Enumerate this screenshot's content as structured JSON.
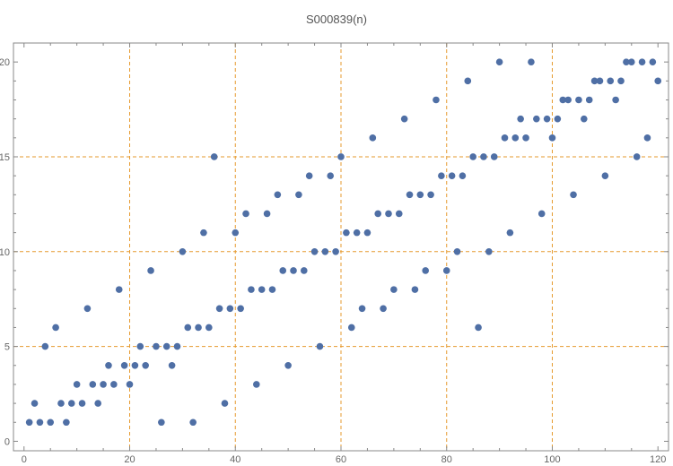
{
  "chart_data": {
    "type": "scatter",
    "title": "S000839(n)",
    "xlabel": "",
    "ylabel": "",
    "xlim": [
      -2,
      122
    ],
    "ylim": [
      -0.5,
      21
    ],
    "grid": true,
    "legend": "none",
    "x_ticks": [
      0,
      20,
      40,
      60,
      80,
      100,
      120
    ],
    "y_ticks": [
      0,
      5,
      10,
      15,
      20
    ],
    "x_gridlines": [
      20,
      40,
      60,
      80,
      100
    ],
    "y_gridlines": [
      5,
      10,
      15
    ],
    "colors": {
      "points": "#4f6fa5",
      "grid": "#e69a2e",
      "frame": "#888888",
      "text": "#555555"
    },
    "series": [
      {
        "x": [
          1,
          2,
          3,
          4,
          5,
          6,
          7,
          8,
          9,
          10,
          11,
          12,
          13,
          14,
          15,
          16,
          17,
          18,
          19,
          20,
          21,
          22,
          23,
          24,
          25,
          26,
          27,
          28,
          29,
          30,
          31,
          32,
          33,
          34,
          35,
          36,
          37,
          38,
          39,
          40,
          41,
          42,
          43,
          44,
          45,
          46,
          47,
          48,
          49,
          50,
          51,
          52,
          53,
          54,
          55,
          56,
          57,
          58,
          59,
          60,
          61,
          62,
          63,
          64,
          65,
          66,
          67,
          68,
          69,
          70,
          71,
          72,
          73,
          74,
          75,
          76,
          77,
          78,
          79,
          80,
          81,
          82,
          83,
          84,
          85,
          86,
          87,
          88,
          89,
          90,
          91,
          92,
          93,
          94,
          95,
          96,
          97,
          98,
          99,
          100,
          101,
          102,
          103,
          104,
          105,
          106,
          107,
          108,
          109,
          110,
          111,
          112,
          113,
          114,
          115,
          116,
          117,
          118,
          119,
          120
        ],
        "y": [
          1,
          2,
          1,
          5,
          1,
          6,
          2,
          1,
          2,
          3,
          2,
          7,
          3,
          2,
          3,
          4,
          3,
          8,
          4,
          3,
          4,
          5,
          4,
          9,
          5,
          1,
          5,
          4,
          5,
          10,
          6,
          1,
          6,
          11,
          6,
          15,
          7,
          2,
          7,
          11,
          7,
          12,
          8,
          3,
          8,
          12,
          8,
          13,
          9,
          4,
          9,
          13,
          9,
          14,
          10,
          5,
          10,
          14,
          10,
          15,
          11,
          6,
          11,
          7,
          11,
          16,
          12,
          7,
          12,
          8,
          12,
          17,
          13,
          8,
          13,
          9,
          13,
          18,
          14,
          9,
          14,
          10,
          14,
          19,
          15,
          6,
          15,
          10,
          15,
          20,
          16,
          11,
          16,
          17,
          16,
          20,
          17,
          12,
          17,
          16,
          17,
          18,
          18,
          13,
          18,
          17,
          18,
          19,
          19,
          14,
          19,
          18,
          19,
          20,
          20,
          15,
          20,
          16,
          20,
          19
        ]
      }
    ]
  }
}
